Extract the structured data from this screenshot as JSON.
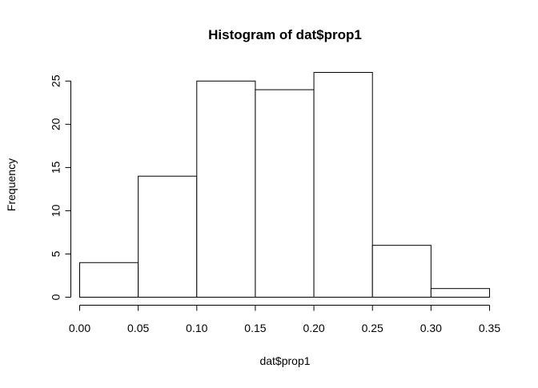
{
  "chart_data": {
    "type": "bar",
    "title": "Histogram of dat$prop1",
    "xlabel": "dat$prop1",
    "ylabel": "Frequency",
    "bins": [
      {
        "from": 0.0,
        "to": 0.05,
        "value": 4
      },
      {
        "from": 0.05,
        "to": 0.1,
        "value": 14
      },
      {
        "from": 0.1,
        "to": 0.15,
        "value": 25
      },
      {
        "from": 0.15,
        "to": 0.2,
        "value": 24
      },
      {
        "from": 0.2,
        "to": 0.25,
        "value": 26
      },
      {
        "from": 0.25,
        "to": 0.3,
        "value": 6
      },
      {
        "from": 0.3,
        "to": 0.35,
        "value": 1
      }
    ],
    "xlim": [
      0.0,
      0.35
    ],
    "ylim": [
      0,
      26
    ],
    "x_ticks": [
      "0.00",
      "0.05",
      "0.10",
      "0.15",
      "0.20",
      "0.25",
      "0.30",
      "0.35"
    ],
    "x_tick_values": [
      0.0,
      0.05,
      0.1,
      0.15,
      0.2,
      0.25,
      0.3,
      0.35
    ],
    "y_ticks": [
      "0",
      "5",
      "10",
      "15",
      "20",
      "25"
    ],
    "y_tick_values": [
      0,
      5,
      10,
      15,
      20,
      25
    ],
    "grid": false,
    "bar_fill": "#ffffff",
    "bar_stroke": "#000000"
  }
}
